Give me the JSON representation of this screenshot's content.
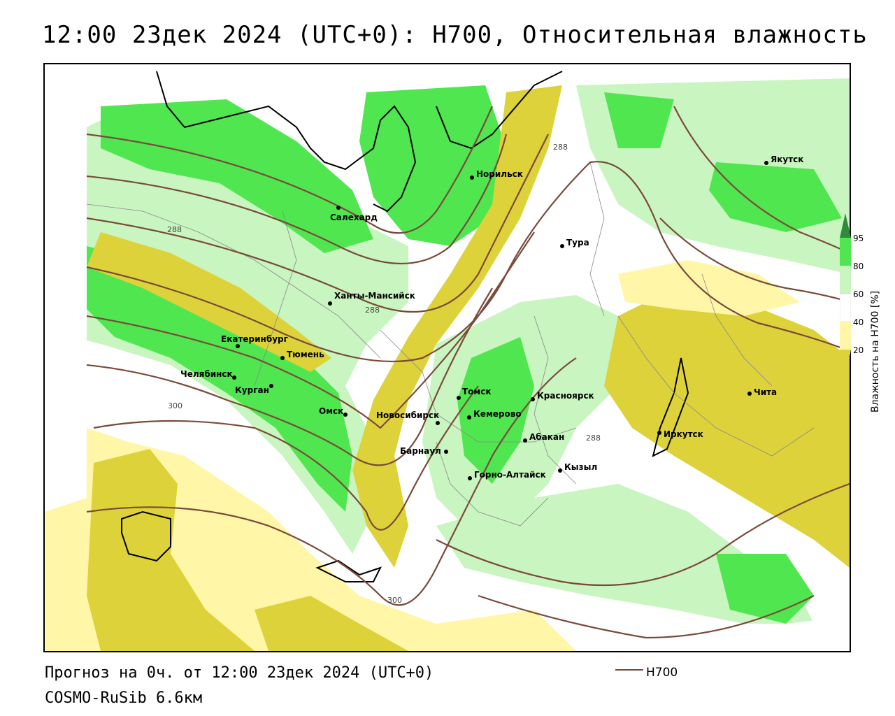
{
  "title": "12:00 23дек 2024 (UTC+0): H700, Относительная влажность",
  "footer": {
    "forecast": "Прогноз на 0ч. от 12:00 23дек 2024 (UTC+0)",
    "model": "COSMO-RuSib 6.6км"
  },
  "legend": {
    "line_label": "H700",
    "line_color": "#7a4a3a"
  },
  "colorbar": {
    "title": "Влажность на H700 [%]",
    "ticks": [
      "95",
      "80",
      "60",
      "40",
      "20"
    ],
    "colors": {
      "95": "#2e8b3a",
      "80": "#4fe64f",
      "60": "#c8f5c0",
      "40": "#ffffff",
      "20": "#fff6a8",
      "0": "#ddd23a"
    }
  },
  "isoline_labels": [
    "288",
    "288",
    "288",
    "288",
    "300",
    "300"
  ],
  "cities": [
    {
      "name": "Якутск"
    },
    {
      "name": "Норильск"
    },
    {
      "name": "Салехард"
    },
    {
      "name": "Тура"
    },
    {
      "name": "Ханты-Мансийск"
    },
    {
      "name": "Екатеринбург"
    },
    {
      "name": "Тюмень"
    },
    {
      "name": "Челябинск"
    },
    {
      "name": "Курган"
    },
    {
      "name": "Омск"
    },
    {
      "name": "Новосибирск"
    },
    {
      "name": "Томск"
    },
    {
      "name": "Кемерово"
    },
    {
      "name": "Красноярск"
    },
    {
      "name": "Абакан"
    },
    {
      "name": "Барнаул"
    },
    {
      "name": "Горно-Алтайск"
    },
    {
      "name": "Кызыл"
    },
    {
      "name": "Иркутск"
    },
    {
      "name": "Чита"
    }
  ]
}
